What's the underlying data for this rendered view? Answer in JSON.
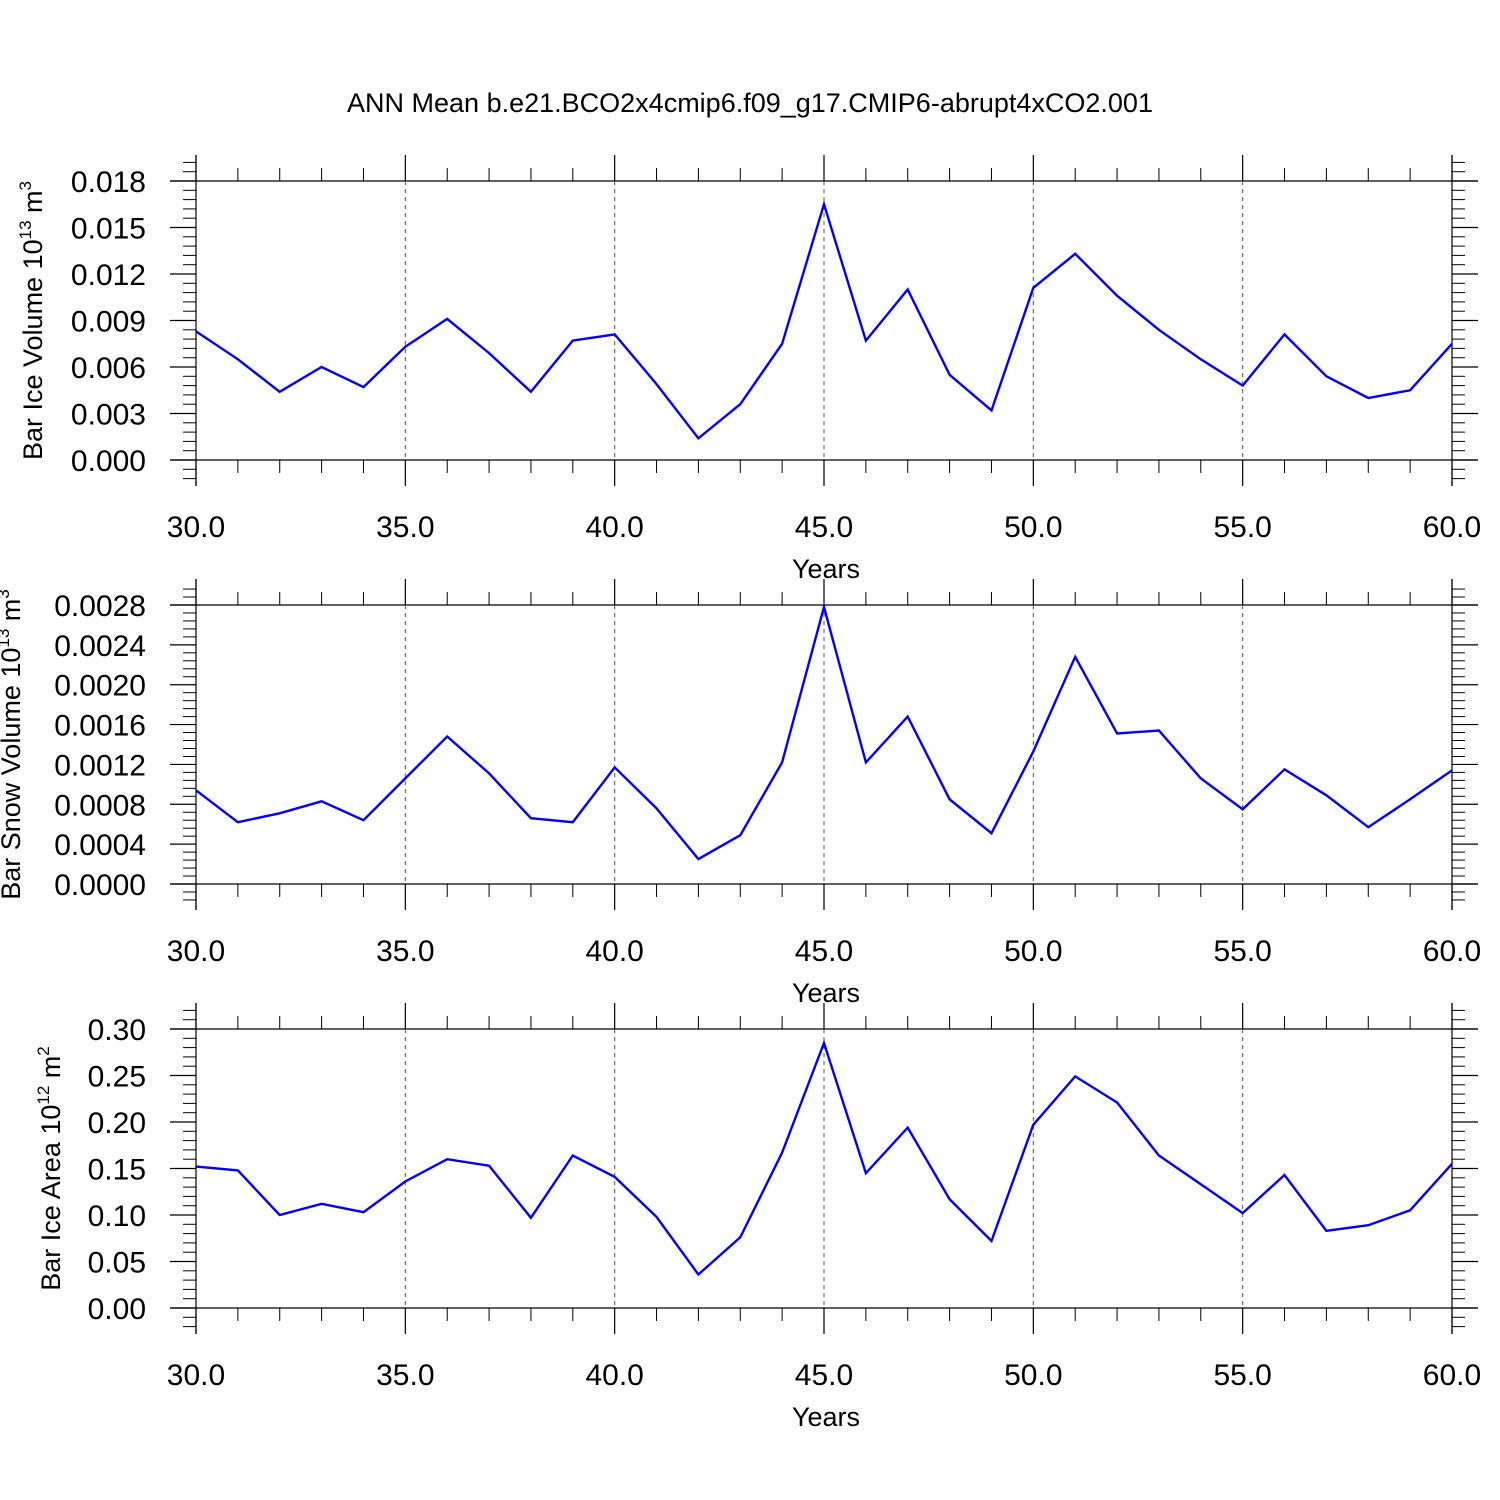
{
  "title": "ANN Mean b.e21.BCO2x4cmip6.f09_g17.CMIP6-abrupt4xCO2.001",
  "line_color": "#0000ff",
  "chart_data": [
    {
      "type": "line",
      "xlabel": "Years",
      "ylabel": "Bar Ice Volume 10",
      "ylabel_exp": "13",
      "ylabel_unit": "m",
      "ylabel_unit_exp": "3",
      "xlim": [
        30,
        60
      ],
      "ylim": [
        0,
        0.018
      ],
      "xticks": [
        30,
        35,
        40,
        45,
        50,
        55,
        60
      ],
      "xtick_labels": [
        "30.0",
        "35.0",
        "40.0",
        "45.0",
        "50.0",
        "55.0",
        "60.0"
      ],
      "yticks": [
        0,
        0.003,
        0.006,
        0.009,
        0.012,
        0.015,
        0.018
      ],
      "ytick_labels": [
        "0.000",
        "0.003",
        "0.006",
        "0.009",
        "0.012",
        "0.015",
        "0.018"
      ],
      "grid": "vertical dashed at major x ticks",
      "x": [
        30,
        31,
        32,
        33,
        34,
        35,
        36,
        37,
        38,
        39,
        40,
        41,
        42,
        43,
        44,
        45,
        46,
        47,
        48,
        49,
        50,
        51,
        52,
        53,
        54,
        55,
        56,
        57,
        58,
        59,
        60
      ],
      "y": [
        0.0083,
        0.0065,
        0.0044,
        0.006,
        0.0047,
        0.0073,
        0.0091,
        0.0069,
        0.0044,
        0.0077,
        0.0081,
        0.0049,
        0.0014,
        0.0036,
        0.0075,
        0.0165,
        0.0077,
        0.011,
        0.0055,
        0.0032,
        0.0111,
        0.0133,
        0.0106,
        0.0084,
        0.0065,
        0.0048,
        0.0081,
        0.0054,
        0.004,
        0.0045,
        0.0075
      ]
    },
    {
      "type": "line",
      "xlabel": "Years",
      "ylabel": "Bar Snow Volume 10",
      "ylabel_exp": "13",
      "ylabel_unit": "m",
      "ylabel_unit_exp": "3",
      "xlim": [
        30,
        60
      ],
      "ylim": [
        0,
        0.0028
      ],
      "xticks": [
        30,
        35,
        40,
        45,
        50,
        55,
        60
      ],
      "xtick_labels": [
        "30.0",
        "35.0",
        "40.0",
        "45.0",
        "50.0",
        "55.0",
        "60.0"
      ],
      "yticks": [
        0,
        0.0004,
        0.0008,
        0.0012,
        0.0016,
        0.002,
        0.0024,
        0.0028
      ],
      "ytick_labels": [
        "0.0000",
        "0.0004",
        "0.0008",
        "0.0012",
        "0.0016",
        "0.0020",
        "0.0024",
        "0.0028"
      ],
      "grid": "vertical dashed at major x ticks",
      "x": [
        30,
        31,
        32,
        33,
        34,
        35,
        36,
        37,
        38,
        39,
        40,
        41,
        42,
        43,
        44,
        45,
        46,
        47,
        48,
        49,
        50,
        51,
        52,
        53,
        54,
        55,
        56,
        57,
        58,
        59,
        60
      ],
      "y": [
        0.00094,
        0.00062,
        0.00071,
        0.00083,
        0.00064,
        0.00106,
        0.00148,
        0.00111,
        0.00066,
        0.00062,
        0.00117,
        0.00076,
        0.00025,
        0.00049,
        0.00122,
        0.00278,
        0.00122,
        0.00168,
        0.00085,
        0.00051,
        0.00133,
        0.00228,
        0.00151,
        0.00154,
        0.00106,
        0.00075,
        0.00115,
        0.00089,
        0.00057,
        0.00085,
        0.00114
      ]
    },
    {
      "type": "line",
      "xlabel": "Years",
      "ylabel": "Bar Ice Area 10",
      "ylabel_exp": "12",
      "ylabel_unit": "m",
      "ylabel_unit_exp": "2",
      "xlim": [
        30,
        60
      ],
      "ylim": [
        0,
        0.3
      ],
      "xticks": [
        30,
        35,
        40,
        45,
        50,
        55,
        60
      ],
      "xtick_labels": [
        "30.0",
        "35.0",
        "40.0",
        "45.0",
        "50.0",
        "55.0",
        "60.0"
      ],
      "yticks": [
        0,
        0.05,
        0.1,
        0.15,
        0.2,
        0.25,
        0.3
      ],
      "ytick_labels": [
        "0.00",
        "0.05",
        "0.10",
        "0.15",
        "0.20",
        "0.25",
        "0.30"
      ],
      "grid": "vertical dashed at major x ticks",
      "x": [
        30,
        31,
        32,
        33,
        34,
        35,
        36,
        37,
        38,
        39,
        40,
        41,
        42,
        43,
        44,
        45,
        46,
        47,
        48,
        49,
        50,
        51,
        52,
        53,
        54,
        55,
        56,
        57,
        58,
        59,
        60
      ],
      "y": [
        0.152,
        0.148,
        0.1,
        0.112,
        0.103,
        0.136,
        0.16,
        0.153,
        0.097,
        0.164,
        0.141,
        0.098,
        0.036,
        0.076,
        0.167,
        0.285,
        0.145,
        0.194,
        0.117,
        0.072,
        0.197,
        0.249,
        0.221,
        0.164,
        0.133,
        0.102,
        0.143,
        0.083,
        0.089,
        0.105,
        0.155
      ]
    }
  ]
}
